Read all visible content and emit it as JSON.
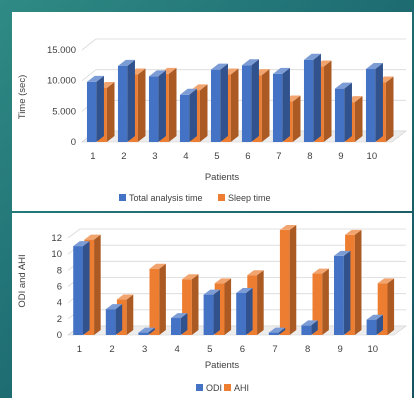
{
  "chart_data": [
    {
      "type": "bar",
      "categories": [
        "1",
        "2",
        "3",
        "4",
        "5",
        "6",
        "7",
        "8",
        "9",
        "10"
      ],
      "series": [
        {
          "name": "Total analysis time",
          "values": [
            9800,
            12400,
            10700,
            7700,
            11800,
            12500,
            11100,
            13400,
            8700,
            11900
          ],
          "color": "#4472C4"
        },
        {
          "name": "Sleep time",
          "values": [
            8800,
            11000,
            11100,
            8400,
            11000,
            10900,
            6600,
            12300,
            6500,
            9700
          ],
          "color": "#ED7D31"
        }
      ],
      "ylabel": "Time (sec)",
      "xlabel": "Patients",
      "ylim": [
        0,
        15000
      ],
      "yticks": [
        "15.000",
        "10.000",
        "5.000",
        "0"
      ],
      "ytick_values": [
        15000,
        10000,
        5000,
        0
      ],
      "grid": true,
      "legend": "bottom",
      "style": "3d-clustered-column"
    },
    {
      "type": "bar",
      "categories": [
        "1",
        "2",
        "3",
        "4",
        "5",
        "6",
        "7",
        "8",
        "9",
        "10"
      ],
      "series": [
        {
          "name": "ODI",
          "values": [
            11.0,
            3.2,
            0.3,
            2.1,
            5.0,
            5.2,
            0.3,
            1.2,
            9.8,
            1.9
          ],
          "color": "#4472C4"
        },
        {
          "name": "AHI",
          "values": [
            11.8,
            4.4,
            8.2,
            6.9,
            6.4,
            7.4,
            13.0,
            7.6,
            12.4,
            6.4
          ],
          "color": "#ED7D31"
        }
      ],
      "ylabel": "ODI and AHI",
      "xlabel": "Patients",
      "ylim": [
        0,
        12
      ],
      "yticks": [
        "12",
        "10",
        "8",
        "6",
        "4",
        "2",
        "0"
      ],
      "ytick_values": [
        12,
        10,
        8,
        6,
        4,
        2,
        0
      ],
      "grid": true,
      "legend": "bottom",
      "style": "3d-clustered-column"
    }
  ]
}
